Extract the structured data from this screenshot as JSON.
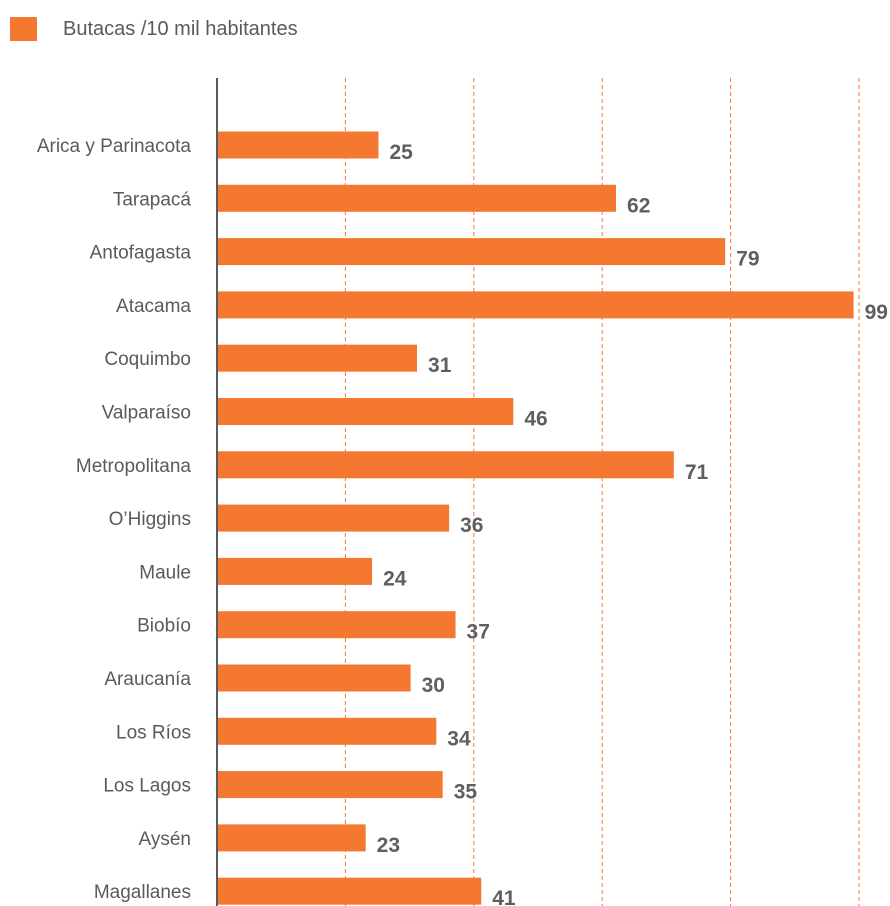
{
  "chart_data": {
    "type": "bar",
    "orientation": "horizontal",
    "categories": [
      "Arica y Parinacota",
      "Tarapacá",
      "Antofagasta",
      "Atacama",
      "Coquimbo",
      "Valparaíso",
      "Metropolitana",
      "O’Higgins",
      "Maule",
      "Biobío",
      "Araucanía",
      "Los Ríos",
      "Los Lagos",
      "Aysén",
      "Magallanes"
    ],
    "series": [
      {
        "name": "Butacas /10 mil habitantes",
        "values": [
          25,
          62,
          79,
          99,
          31,
          46,
          71,
          36,
          24,
          37,
          30,
          34,
          35,
          23,
          41
        ]
      }
    ],
    "xlim": [
      0,
      100
    ],
    "grid": "vertical dashed",
    "legend": "top-left",
    "colors": {
      "bar": "#f47830",
      "grid": "#f47830",
      "axis": "#5a5a5a",
      "label": "#5a5a5a"
    }
  }
}
